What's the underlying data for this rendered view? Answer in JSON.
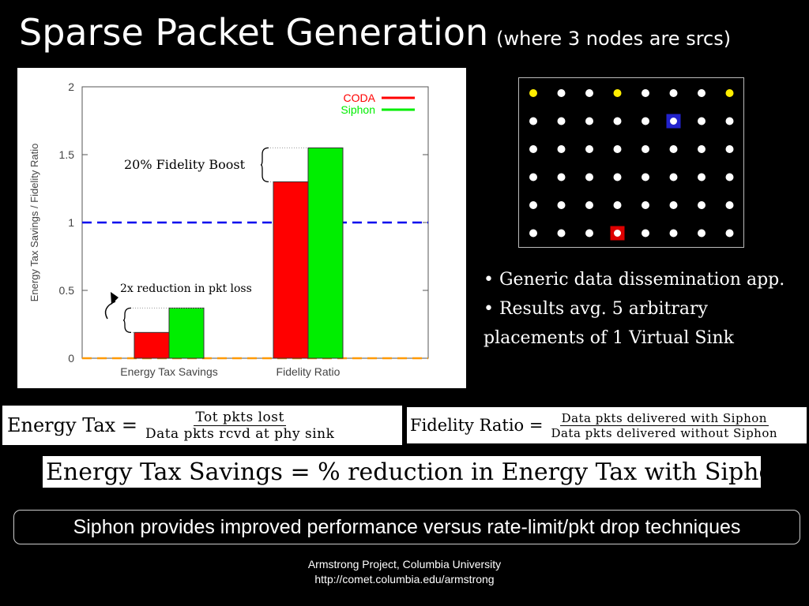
{
  "slide": {
    "title": "Sparse Packet Generation",
    "subtitle": "(where 3 nodes are srcs)"
  },
  "chart_data": {
    "type": "bar",
    "categories": [
      "Energy Tax Savings",
      "Fidelity Ratio"
    ],
    "series": [
      {
        "name": "CODA",
        "color": "#ff0000",
        "values": [
          0.19,
          1.3
        ]
      },
      {
        "name": "Siphon",
        "color": "#00ee00",
        "values": [
          0.37,
          1.55
        ]
      }
    ],
    "ylabel": "Energy Tax Savings / Fidelity Ratio",
    "xlabel": "",
    "ylim": [
      0,
      2
    ],
    "yticks": [
      "0",
      "0.5",
      "1",
      "1.5",
      "2"
    ],
    "reference_lines": [
      {
        "y": 1,
        "color": "#0000ee",
        "style": "dashed"
      },
      {
        "y": 0,
        "color": "#ff9900",
        "style": "dashed"
      }
    ],
    "legend_position": "top-right",
    "grid": false,
    "annotations": [
      {
        "text": "20% Fidelity Boost"
      },
      {
        "text": "2x reduction  in  pkt loss"
      }
    ]
  },
  "node_grid": {
    "rows": 6,
    "cols": 8,
    "source_color": "#ffee00",
    "node_color": "#ffffff",
    "sources": [
      [
        0,
        0
      ],
      [
        0,
        3
      ],
      [
        0,
        7
      ]
    ],
    "highlights": [
      {
        "row": 1,
        "col": 5,
        "color": "#2222cc"
      },
      {
        "row": 5,
        "col": 3,
        "color": "#dd0000"
      }
    ]
  },
  "bullets": [
    "• Generic data dissemination app.",
    "• Results avg. 5 arbitrary",
    "placements of 1 Virtual Sink"
  ],
  "formulas": {
    "energy_tax": {
      "lhs": "Energy Tax =",
      "num": "Tot pkts lost",
      "den": "Data pkts rcvd at phy sink"
    },
    "fidelity_ratio": {
      "lhs": "Fidelity Ratio =",
      "num": "Data pkts delivered with Siphon",
      "den": "Data pkts delivered without Siphon"
    },
    "energy_tax_savings": "Energy Tax Savings = % reduction in Energy Tax with Siphon"
  },
  "callout": "Siphon provides improved performance versus rate-limit/pkt drop techniques",
  "footer": {
    "line1": "Armstrong Project, Columbia University",
    "line2": "http://comet.columbia.edu/armstrong"
  }
}
